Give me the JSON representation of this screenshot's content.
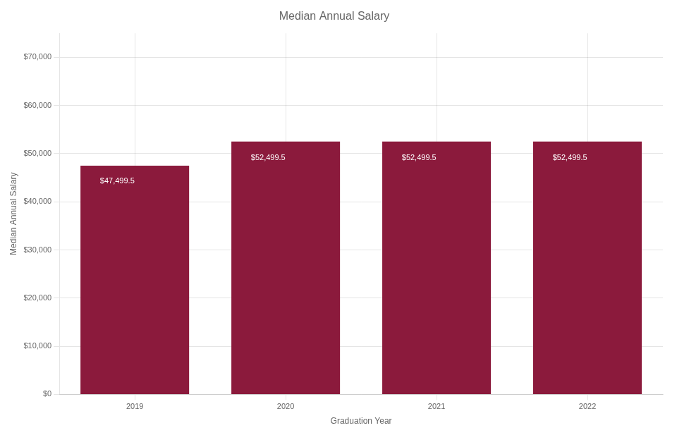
{
  "chart_data": {
    "type": "bar",
    "title": "Median Annual Salary",
    "xlabel": "Graduation Year",
    "ylabel": "Median Annual Salary",
    "categories": [
      "2019",
      "2020",
      "2021",
      "2022"
    ],
    "values": [
      47499.5,
      52499.5,
      52499.5,
      52499.5
    ],
    "value_labels": [
      "$47,499.5",
      "$52,499.5",
      "$52,499.5",
      "$52,499.5"
    ],
    "data_labels": true,
    "color": "#8B1A3C",
    "ylim": [
      0,
      75000
    ],
    "yticks": [
      {
        "value": 0,
        "label": "$0"
      },
      {
        "value": 10000,
        "label": "$10,000"
      },
      {
        "value": 20000,
        "label": "$20,000"
      },
      {
        "value": 30000,
        "label": "$30,000"
      },
      {
        "value": 40000,
        "label": "$40,000"
      },
      {
        "value": 50000,
        "label": "$50,000"
      },
      {
        "value": 60000,
        "label": "$60,000"
      },
      {
        "value": 70000,
        "label": "$70,000"
      }
    ],
    "grid": true
  }
}
